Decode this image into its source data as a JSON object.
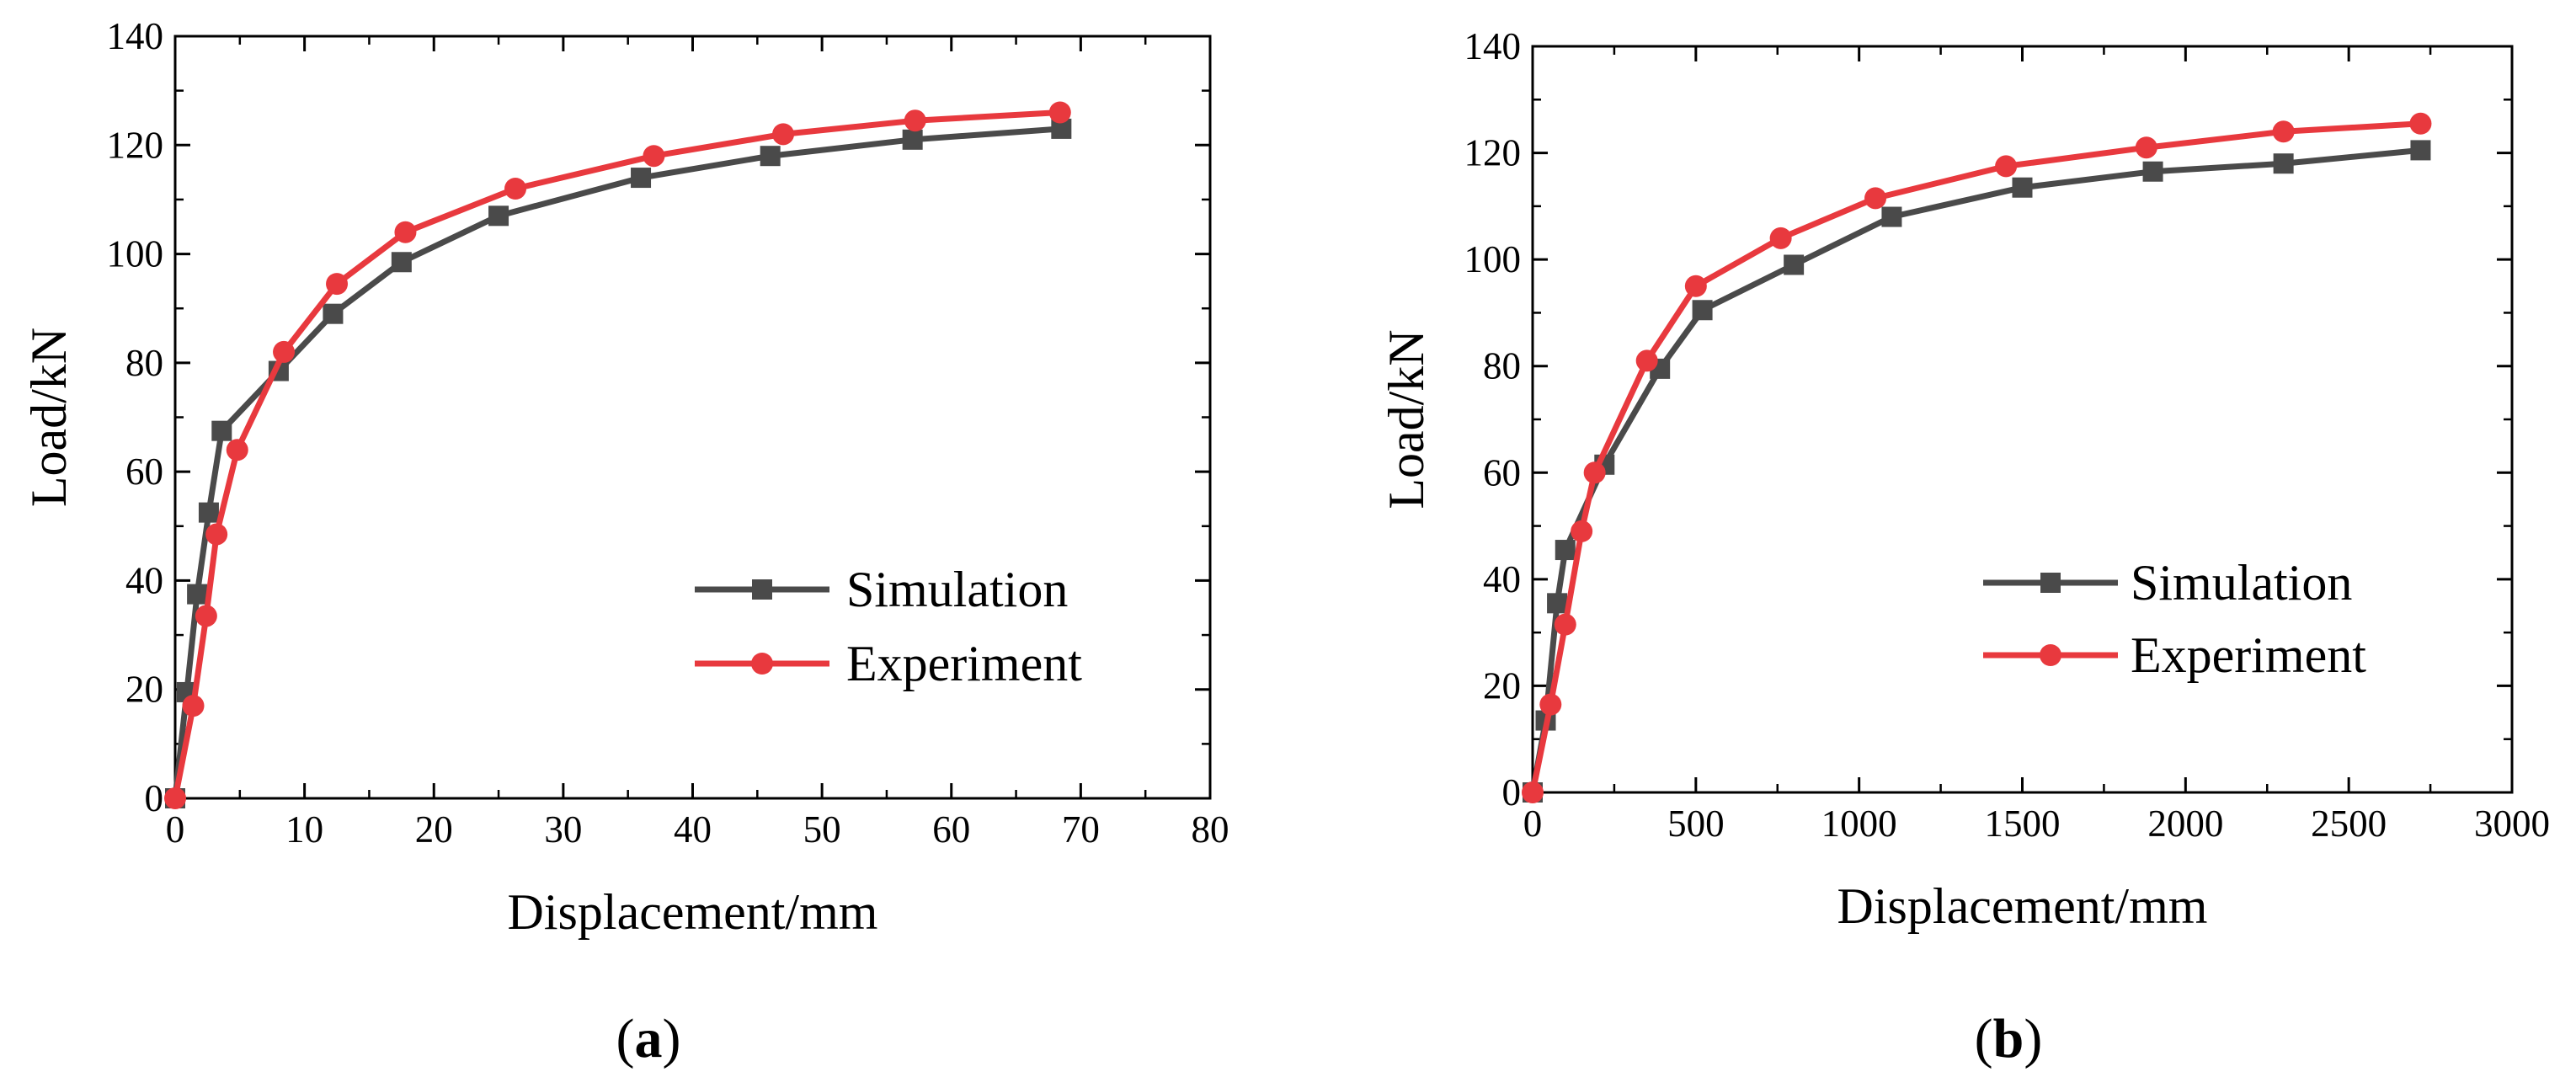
{
  "chart_data": [
    {
      "type": "line",
      "panel_label": "a",
      "title": "",
      "xlabel": "Displacement/mm",
      "ylabel": "Load/kN",
      "xlim": [
        0,
        80
      ],
      "ylim": [
        0,
        140
      ],
      "xticks": [
        0,
        10,
        20,
        30,
        40,
        50,
        60,
        70,
        80
      ],
      "yticks": [
        0,
        20,
        40,
        60,
        80,
        100,
        120,
        140
      ],
      "legend_position": "bottom-right",
      "series": [
        {
          "name": "Simulation",
          "color": "#4a4a4a",
          "marker": "square",
          "x": [
            0,
            0.9,
            1.7,
            2.6,
            3.6,
            8.0,
            12.2,
            17.5,
            25.0,
            36.0,
            46.0,
            57.0,
            68.5
          ],
          "y": [
            0,
            19.5,
            37.5,
            52.5,
            67.5,
            78.5,
            89.0,
            98.5,
            107.0,
            114.0,
            118.0,
            121.0,
            123.0
          ]
        },
        {
          "name": "Experiment",
          "color": "#e8393e",
          "marker": "circle",
          "x": [
            0,
            1.4,
            2.4,
            3.2,
            4.8,
            8.4,
            12.5,
            17.8,
            26.3,
            37.0,
            47.0,
            57.2,
            68.4
          ],
          "y": [
            0,
            17.0,
            33.5,
            48.5,
            64.0,
            82.0,
            94.5,
            104.0,
            112.0,
            118.0,
            122.0,
            124.5,
            126.0
          ]
        }
      ]
    },
    {
      "type": "line",
      "panel_label": "b",
      "title": "",
      "xlabel": "Displacement/mm",
      "ylabel": "Load/kN",
      "xlim": [
        0,
        3000
      ],
      "ylim": [
        0,
        140
      ],
      "xticks": [
        0,
        500,
        1000,
        1500,
        2000,
        2500,
        3000
      ],
      "yticks": [
        0,
        20,
        40,
        60,
        80,
        100,
        120,
        140
      ],
      "legend_position": "bottom-right",
      "series": [
        {
          "name": "Simulation",
          "color": "#4a4a4a",
          "marker": "square",
          "x": [
            0,
            40,
            75,
            100,
            220,
            390,
            520,
            800,
            1100,
            1500,
            1900,
            2300,
            2720
          ],
          "y": [
            0,
            13.5,
            35.5,
            45.5,
            61.5,
            79.5,
            90.5,
            99.0,
            108.0,
            113.5,
            116.5,
            118.0,
            120.5
          ]
        },
        {
          "name": "Experiment",
          "color": "#e8393e",
          "marker": "circle",
          "x": [
            0,
            55,
            100,
            150,
            190,
            350,
            500,
            760,
            1050,
            1450,
            1880,
            2300,
            2720
          ],
          "y": [
            0,
            16.5,
            31.5,
            49.0,
            60.0,
            81.0,
            95.0,
            104.0,
            111.5,
            117.5,
            121.0,
            124.0,
            125.5
          ]
        }
      ]
    }
  ]
}
